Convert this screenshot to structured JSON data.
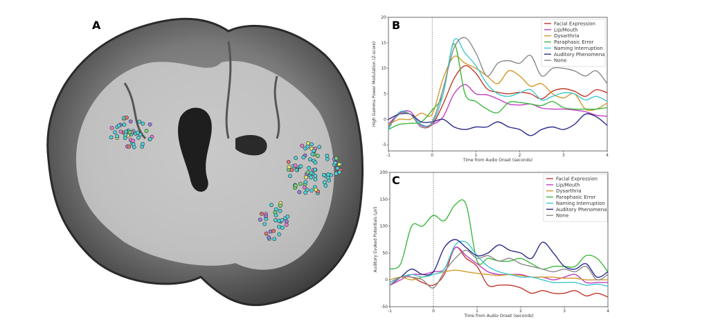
{
  "panel_labels": {
    "a": "A",
    "b": "B",
    "c": "C"
  },
  "electrode_colors": [
    "#4fd0d8",
    "#e07ad0",
    "#e8e070",
    "#70d870",
    "#9a7ae0",
    "#e07070"
  ],
  "chart_data": [
    {
      "type": "line",
      "panel": "B",
      "xlabel": "Time from Audio Onset (seconds)",
      "ylabel": "High Gamma Power Modulation (Z-score)",
      "xlim": [
        -1,
        4
      ],
      "ylim": [
        -6.2,
        20
      ],
      "xticks": [
        -1,
        0,
        1,
        2,
        3,
        4
      ],
      "yticks": [
        -5,
        0,
        5,
        10,
        15,
        20
      ],
      "grid": false,
      "legend_position": "top-right",
      "onset_line_x": 0,
      "x": [
        -1,
        -0.75,
        -0.5,
        -0.25,
        0,
        0.25,
        0.5,
        0.75,
        1,
        1.25,
        1.5,
        1.75,
        2,
        2.25,
        2.5,
        2.75,
        3,
        3.25,
        3.5,
        3.75,
        4
      ],
      "series": [
        {
          "name": "Facial Expression",
          "color": "#c0392b",
          "values": [
            -1.5,
            1.3,
            1,
            -1.5,
            -1,
            3,
            8,
            10.5,
            9,
            6,
            5.3,
            5,
            5.3,
            5,
            4,
            5.5,
            6,
            5.5,
            4.5,
            5.8,
            5.2
          ]
        },
        {
          "name": "Lip/Mouth",
          "color": "#c23cc2",
          "values": [
            -1,
            1.2,
            1.5,
            -1.2,
            -1,
            0.5,
            5,
            6.8,
            5,
            4.8,
            4,
            3,
            2.8,
            3,
            2.2,
            2,
            2,
            1.8,
            1.5,
            0.8,
            0.6
          ]
        },
        {
          "name": "Dysarthria",
          "color": "#d4982a",
          "values": [
            -1,
            0,
            0,
            1.2,
            1,
            8,
            12.3,
            11,
            10,
            8.5,
            7,
            9.5,
            8.5,
            6.5,
            7,
            5,
            4.2,
            5,
            2,
            2,
            3.2
          ]
        },
        {
          "name": "Paraphasic Error",
          "color": "#3cb83c",
          "values": [
            -2,
            -1,
            -0.8,
            -0.5,
            1.8,
            5,
            14.8,
            5,
            3.5,
            2,
            1.3,
            3.3,
            3.3,
            3,
            2.7,
            3.5,
            2.3,
            2,
            2,
            2,
            2.3
          ]
        },
        {
          "name": "Naming Interruption",
          "color": "#3cc8d0",
          "values": [
            -2,
            1.4,
            1,
            -1,
            -0.8,
            5,
            15.5,
            13,
            10.5,
            7,
            5,
            4.5,
            5.2,
            5.8,
            3.8,
            4.5,
            5.2,
            5,
            3.8,
            4.5,
            3.5
          ]
        },
        {
          "name": "Auditory Phenomena",
          "color": "#2b2b8c",
          "values": [
            0,
            1,
            1,
            -0.5,
            -0.5,
            0,
            -1.5,
            -2,
            -1.5,
            -1.5,
            -0.5,
            -1.5,
            -2,
            -3.2,
            -2,
            -1.5,
            -2,
            -1,
            1,
            0.5,
            -1.2
          ]
        },
        {
          "name": "None",
          "color": "#8a8a8a",
          "values": [
            -1.5,
            1,
            1,
            -1.5,
            -0.5,
            6,
            14,
            16,
            13,
            8.5,
            11,
            11.5,
            11,
            12.5,
            8.5,
            10,
            10,
            9.5,
            8.5,
            9.5,
            7
          ]
        }
      ]
    },
    {
      "type": "line",
      "panel": "C",
      "xlabel": "Time from Audio Onset (seconds)",
      "ylabel": "Auditory Evoked Potentials (µV)",
      "xlim": [
        -1,
        4
      ],
      "ylim": [
        -50,
        200
      ],
      "xticks": [
        -1,
        0,
        1,
        2,
        3,
        4
      ],
      "yticks": [
        -50,
        0,
        50,
        100,
        150,
        200
      ],
      "grid": false,
      "legend_position": "top-right",
      "onset_line_x": 0,
      "x": [
        -1,
        -0.75,
        -0.5,
        -0.25,
        0,
        0.25,
        0.5,
        0.75,
        1,
        1.25,
        1.5,
        1.75,
        2,
        2.25,
        2.5,
        2.75,
        3,
        3.25,
        3.5,
        3.75,
        4
      ],
      "series": [
        {
          "name": "Facial Expression",
          "color": "#c0392b",
          "values": [
            -5,
            5,
            5,
            -5,
            -10,
            10,
            60,
            40,
            25,
            -10,
            -10,
            -10,
            -15,
            -25,
            -20,
            -25,
            -25,
            -20,
            -30,
            -25,
            -32
          ]
        },
        {
          "name": "Lip/Mouth",
          "color": "#c23cc2",
          "values": [
            -10,
            0,
            10,
            10,
            15,
            20,
            60,
            45,
            30,
            15,
            10,
            10,
            10,
            5,
            5,
            0,
            5,
            10,
            -5,
            -5,
            -5
          ]
        },
        {
          "name": "Dysarthria",
          "color": "#d4982a",
          "values": [
            0,
            5,
            0,
            5,
            10,
            15,
            18,
            15,
            12,
            10,
            8,
            10,
            8,
            5,
            5,
            5,
            3,
            3,
            0,
            0,
            0
          ]
        },
        {
          "name": "Paraphasic Error",
          "color": "#3cb83c",
          "values": [
            20,
            30,
            100,
            100,
            120,
            110,
            140,
            140,
            35,
            40,
            35,
            35,
            40,
            30,
            20,
            25,
            25,
            25,
            45,
            40,
            15
          ]
        },
        {
          "name": "Naming Interruption",
          "color": "#3cc8d0",
          "values": [
            -5,
            5,
            10,
            5,
            10,
            20,
            65,
            70,
            45,
            25,
            15,
            10,
            5,
            5,
            0,
            -5,
            -5,
            -5,
            -10,
            -8,
            -12
          ]
        },
        {
          "name": "Auditory Phenomena",
          "color": "#2b2b8c",
          "values": [
            -10,
            5,
            20,
            10,
            15,
            60,
            75,
            60,
            45,
            50,
            65,
            55,
            50,
            40,
            70,
            50,
            25,
            20,
            30,
            5,
            15
          ]
        },
        {
          "name": "None",
          "color": "#8a8a8a",
          "values": [
            -10,
            5,
            5,
            0,
            -15,
            15,
            40,
            55,
            40,
            45,
            35,
            40,
            30,
            25,
            20,
            15,
            20,
            15,
            25,
            0,
            10
          ]
        }
      ]
    }
  ]
}
